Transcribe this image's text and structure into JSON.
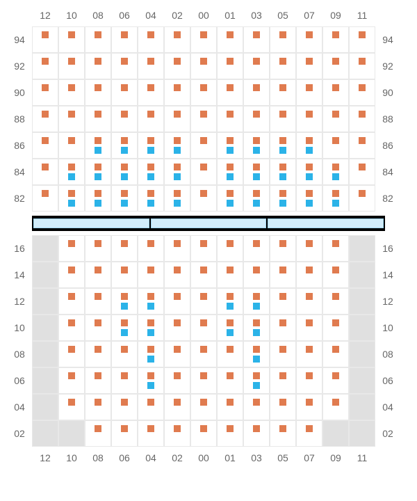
{
  "colors": {
    "orange": "#e07b4f",
    "blue": "#2bb3e8",
    "grid_border": "#e8e8e8",
    "aisle_bg": "#e0e0e0",
    "label_text": "#666666",
    "divider_bg": "#000000",
    "divider_seg_fill": "#d2ecfa",
    "divider_seg_border": "#9fd4ef"
  },
  "column_labels": [
    "12",
    "10",
    "08",
    "06",
    "04",
    "02",
    "00",
    "01",
    "03",
    "05",
    "07",
    "09",
    "11"
  ],
  "section_top": {
    "row_labels": [
      "94",
      "92",
      "90",
      "88",
      "86",
      "84",
      "82"
    ],
    "aisle_cols": []
  },
  "section_bottom": {
    "row_labels": [
      "16",
      "14",
      "12",
      "10",
      "08",
      "06",
      "04",
      "02"
    ],
    "aisle_cols": [
      0,
      12
    ]
  },
  "seats_top": [
    {
      "r": 0,
      "c": 0,
      "t": "o"
    },
    {
      "r": 0,
      "c": 1,
      "t": "o"
    },
    {
      "r": 0,
      "c": 2,
      "t": "o"
    },
    {
      "r": 0,
      "c": 3,
      "t": "o"
    },
    {
      "r": 0,
      "c": 4,
      "t": "o"
    },
    {
      "r": 0,
      "c": 5,
      "t": "o"
    },
    {
      "r": 0,
      "c": 6,
      "t": "o"
    },
    {
      "r": 0,
      "c": 7,
      "t": "o"
    },
    {
      "r": 0,
      "c": 8,
      "t": "o"
    },
    {
      "r": 0,
      "c": 9,
      "t": "o"
    },
    {
      "r": 0,
      "c": 10,
      "t": "o"
    },
    {
      "r": 0,
      "c": 11,
      "t": "o"
    },
    {
      "r": 0,
      "c": 12,
      "t": "o"
    },
    {
      "r": 1,
      "c": 0,
      "t": "o"
    },
    {
      "r": 1,
      "c": 1,
      "t": "o"
    },
    {
      "r": 1,
      "c": 2,
      "t": "o"
    },
    {
      "r": 1,
      "c": 3,
      "t": "o"
    },
    {
      "r": 1,
      "c": 4,
      "t": "o"
    },
    {
      "r": 1,
      "c": 5,
      "t": "o"
    },
    {
      "r": 1,
      "c": 6,
      "t": "o"
    },
    {
      "r": 1,
      "c": 7,
      "t": "o"
    },
    {
      "r": 1,
      "c": 8,
      "t": "o"
    },
    {
      "r": 1,
      "c": 9,
      "t": "o"
    },
    {
      "r": 1,
      "c": 10,
      "t": "o"
    },
    {
      "r": 1,
      "c": 11,
      "t": "o"
    },
    {
      "r": 1,
      "c": 12,
      "t": "o"
    },
    {
      "r": 2,
      "c": 0,
      "t": "o"
    },
    {
      "r": 2,
      "c": 1,
      "t": "o"
    },
    {
      "r": 2,
      "c": 2,
      "t": "o"
    },
    {
      "r": 2,
      "c": 3,
      "t": "o"
    },
    {
      "r": 2,
      "c": 4,
      "t": "o"
    },
    {
      "r": 2,
      "c": 5,
      "t": "o"
    },
    {
      "r": 2,
      "c": 6,
      "t": "o"
    },
    {
      "r": 2,
      "c": 7,
      "t": "o"
    },
    {
      "r": 2,
      "c": 8,
      "t": "o"
    },
    {
      "r": 2,
      "c": 9,
      "t": "o"
    },
    {
      "r": 2,
      "c": 10,
      "t": "o"
    },
    {
      "r": 2,
      "c": 11,
      "t": "o"
    },
    {
      "r": 2,
      "c": 12,
      "t": "o"
    },
    {
      "r": 3,
      "c": 0,
      "t": "o"
    },
    {
      "r": 3,
      "c": 1,
      "t": "o"
    },
    {
      "r": 3,
      "c": 2,
      "t": "o"
    },
    {
      "r": 3,
      "c": 3,
      "t": "o"
    },
    {
      "r": 3,
      "c": 4,
      "t": "o"
    },
    {
      "r": 3,
      "c": 5,
      "t": "o"
    },
    {
      "r": 3,
      "c": 6,
      "t": "o"
    },
    {
      "r": 3,
      "c": 7,
      "t": "o"
    },
    {
      "r": 3,
      "c": 8,
      "t": "o"
    },
    {
      "r": 3,
      "c": 9,
      "t": "o"
    },
    {
      "r": 3,
      "c": 10,
      "t": "o"
    },
    {
      "r": 3,
      "c": 11,
      "t": "o"
    },
    {
      "r": 3,
      "c": 12,
      "t": "o"
    },
    {
      "r": 4,
      "c": 0,
      "t": "o"
    },
    {
      "r": 4,
      "c": 1,
      "t": "o"
    },
    {
      "r": 4,
      "c": 2,
      "t": "o",
      "b": "b"
    },
    {
      "r": 4,
      "c": 3,
      "t": "o",
      "b": "b"
    },
    {
      "r": 4,
      "c": 4,
      "t": "o",
      "b": "b"
    },
    {
      "r": 4,
      "c": 5,
      "t": "o",
      "b": "b"
    },
    {
      "r": 4,
      "c": 6,
      "t": "o"
    },
    {
      "r": 4,
      "c": 7,
      "t": "o",
      "b": "b"
    },
    {
      "r": 4,
      "c": 8,
      "t": "o",
      "b": "b"
    },
    {
      "r": 4,
      "c": 9,
      "t": "o",
      "b": "b"
    },
    {
      "r": 4,
      "c": 10,
      "t": "o",
      "b": "b"
    },
    {
      "r": 4,
      "c": 11,
      "t": "o"
    },
    {
      "r": 4,
      "c": 12,
      "t": "o"
    },
    {
      "r": 5,
      "c": 0,
      "t": "o"
    },
    {
      "r": 5,
      "c": 1,
      "t": "o",
      "b": "b"
    },
    {
      "r": 5,
      "c": 2,
      "t": "o",
      "b": "b"
    },
    {
      "r": 5,
      "c": 3,
      "t": "o",
      "b": "b"
    },
    {
      "r": 5,
      "c": 4,
      "t": "o",
      "b": "b"
    },
    {
      "r": 5,
      "c": 5,
      "t": "o",
      "b": "b"
    },
    {
      "r": 5,
      "c": 6,
      "t": "o"
    },
    {
      "r": 5,
      "c": 7,
      "t": "o",
      "b": "b"
    },
    {
      "r": 5,
      "c": 8,
      "t": "o",
      "b": "b"
    },
    {
      "r": 5,
      "c": 9,
      "t": "o",
      "b": "b"
    },
    {
      "r": 5,
      "c": 10,
      "t": "o",
      "b": "b"
    },
    {
      "r": 5,
      "c": 11,
      "t": "o",
      "b": "b"
    },
    {
      "r": 5,
      "c": 12,
      "t": "o"
    },
    {
      "r": 6,
      "c": 0,
      "t": "o"
    },
    {
      "r": 6,
      "c": 1,
      "t": "o",
      "b": "b"
    },
    {
      "r": 6,
      "c": 2,
      "t": "o",
      "b": "b"
    },
    {
      "r": 6,
      "c": 3,
      "t": "o",
      "b": "b"
    },
    {
      "r": 6,
      "c": 4,
      "t": "o",
      "b": "b"
    },
    {
      "r": 6,
      "c": 5,
      "t": "o",
      "b": "b"
    },
    {
      "r": 6,
      "c": 6,
      "t": "o"
    },
    {
      "r": 6,
      "c": 7,
      "t": "o",
      "b": "b"
    },
    {
      "r": 6,
      "c": 8,
      "t": "o",
      "b": "b"
    },
    {
      "r": 6,
      "c": 9,
      "t": "o",
      "b": "b"
    },
    {
      "r": 6,
      "c": 10,
      "t": "o",
      "b": "b"
    },
    {
      "r": 6,
      "c": 11,
      "t": "o",
      "b": "b"
    },
    {
      "r": 6,
      "c": 12,
      "t": "o"
    }
  ],
  "seats_bottom": [
    {
      "r": 0,
      "c": 1,
      "t": "o"
    },
    {
      "r": 0,
      "c": 2,
      "t": "o"
    },
    {
      "r": 0,
      "c": 3,
      "t": "o"
    },
    {
      "r": 0,
      "c": 4,
      "t": "o"
    },
    {
      "r": 0,
      "c": 5,
      "t": "o"
    },
    {
      "r": 0,
      "c": 6,
      "t": "o"
    },
    {
      "r": 0,
      "c": 7,
      "t": "o"
    },
    {
      "r": 0,
      "c": 8,
      "t": "o"
    },
    {
      "r": 0,
      "c": 9,
      "t": "o"
    },
    {
      "r": 0,
      "c": 10,
      "t": "o"
    },
    {
      "r": 0,
      "c": 11,
      "t": "o"
    },
    {
      "r": 1,
      "c": 1,
      "t": "o"
    },
    {
      "r": 1,
      "c": 2,
      "t": "o"
    },
    {
      "r": 1,
      "c": 3,
      "t": "o"
    },
    {
      "r": 1,
      "c": 4,
      "t": "o"
    },
    {
      "r": 1,
      "c": 5,
      "t": "o"
    },
    {
      "r": 1,
      "c": 6,
      "t": "o"
    },
    {
      "r": 1,
      "c": 7,
      "t": "o"
    },
    {
      "r": 1,
      "c": 8,
      "t": "o"
    },
    {
      "r": 1,
      "c": 9,
      "t": "o"
    },
    {
      "r": 1,
      "c": 10,
      "t": "o"
    },
    {
      "r": 1,
      "c": 11,
      "t": "o"
    },
    {
      "r": 2,
      "c": 1,
      "t": "o"
    },
    {
      "r": 2,
      "c": 2,
      "t": "o"
    },
    {
      "r": 2,
      "c": 3,
      "t": "o",
      "b": "b"
    },
    {
      "r": 2,
      "c": 4,
      "t": "o",
      "b": "b"
    },
    {
      "r": 2,
      "c": 5,
      "t": "o"
    },
    {
      "r": 2,
      "c": 6,
      "t": "o"
    },
    {
      "r": 2,
      "c": 7,
      "t": "o",
      "b": "b"
    },
    {
      "r": 2,
      "c": 8,
      "t": "o",
      "b": "b"
    },
    {
      "r": 2,
      "c": 9,
      "t": "o"
    },
    {
      "r": 2,
      "c": 10,
      "t": "o"
    },
    {
      "r": 2,
      "c": 11,
      "t": "o"
    },
    {
      "r": 3,
      "c": 1,
      "t": "o"
    },
    {
      "r": 3,
      "c": 2,
      "t": "o"
    },
    {
      "r": 3,
      "c": 3,
      "t": "o",
      "b": "b"
    },
    {
      "r": 3,
      "c": 4,
      "t": "o",
      "b": "b"
    },
    {
      "r": 3,
      "c": 5,
      "t": "o"
    },
    {
      "r": 3,
      "c": 6,
      "t": "o"
    },
    {
      "r": 3,
      "c": 7,
      "t": "o",
      "b": "b"
    },
    {
      "r": 3,
      "c": 8,
      "t": "o",
      "b": "b"
    },
    {
      "r": 3,
      "c": 9,
      "t": "o"
    },
    {
      "r": 3,
      "c": 10,
      "t": "o"
    },
    {
      "r": 3,
      "c": 11,
      "t": "o"
    },
    {
      "r": 4,
      "c": 1,
      "t": "o"
    },
    {
      "r": 4,
      "c": 2,
      "t": "o"
    },
    {
      "r": 4,
      "c": 3,
      "t": "o"
    },
    {
      "r": 4,
      "c": 4,
      "t": "o",
      "b": "b"
    },
    {
      "r": 4,
      "c": 5,
      "t": "o"
    },
    {
      "r": 4,
      "c": 6,
      "t": "o"
    },
    {
      "r": 4,
      "c": 7,
      "t": "o"
    },
    {
      "r": 4,
      "c": 8,
      "t": "o",
      "b": "b"
    },
    {
      "r": 4,
      "c": 9,
      "t": "o"
    },
    {
      "r": 4,
      "c": 10,
      "t": "o"
    },
    {
      "r": 4,
      "c": 11,
      "t": "o"
    },
    {
      "r": 5,
      "c": 1,
      "t": "o"
    },
    {
      "r": 5,
      "c": 2,
      "t": "o"
    },
    {
      "r": 5,
      "c": 3,
      "t": "o"
    },
    {
      "r": 5,
      "c": 4,
      "t": "o",
      "b": "b"
    },
    {
      "r": 5,
      "c": 5,
      "t": "o"
    },
    {
      "r": 5,
      "c": 6,
      "t": "o"
    },
    {
      "r": 5,
      "c": 7,
      "t": "o"
    },
    {
      "r": 5,
      "c": 8,
      "t": "o",
      "b": "b"
    },
    {
      "r": 5,
      "c": 9,
      "t": "o"
    },
    {
      "r": 5,
      "c": 10,
      "t": "o"
    },
    {
      "r": 5,
      "c": 11,
      "t": "o"
    },
    {
      "r": 6,
      "c": 1,
      "t": "o"
    },
    {
      "r": 6,
      "c": 2,
      "t": "o"
    },
    {
      "r": 6,
      "c": 3,
      "t": "o"
    },
    {
      "r": 6,
      "c": 4,
      "t": "o"
    },
    {
      "r": 6,
      "c": 5,
      "t": "o"
    },
    {
      "r": 6,
      "c": 6,
      "t": "o"
    },
    {
      "r": 6,
      "c": 7,
      "t": "o"
    },
    {
      "r": 6,
      "c": 8,
      "t": "o"
    },
    {
      "r": 6,
      "c": 9,
      "t": "o"
    },
    {
      "r": 6,
      "c": 10,
      "t": "o"
    },
    {
      "r": 6,
      "c": 11,
      "t": "o"
    },
    {
      "r": 7,
      "c": 2,
      "t": "o"
    },
    {
      "r": 7,
      "c": 3,
      "t": "o"
    },
    {
      "r": 7,
      "c": 4,
      "t": "o"
    },
    {
      "r": 7,
      "c": 5,
      "t": "o"
    },
    {
      "r": 7,
      "c": 6,
      "t": "o"
    },
    {
      "r": 7,
      "c": 7,
      "t": "o"
    },
    {
      "r": 7,
      "c": 8,
      "t": "o"
    },
    {
      "r": 7,
      "c": 9,
      "t": "o"
    },
    {
      "r": 7,
      "c": 10,
      "t": "o"
    }
  ],
  "bottom_aisle_overrides": {
    "6": [
      0,
      12
    ],
    "7": [
      0,
      1,
      11,
      12
    ]
  },
  "divider_segments": 3
}
